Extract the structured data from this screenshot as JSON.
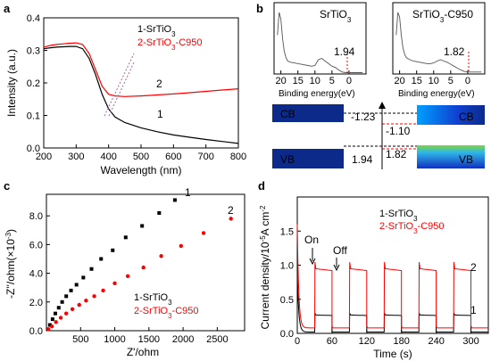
{
  "colors": {
    "black": "#000000",
    "red": "#ff0000",
    "gray": "#555555",
    "cb_dark": "#0b2a8a",
    "vb_green": "#7fd63a"
  },
  "panels": {
    "a": "a",
    "b": "b",
    "c": "c",
    "d": "d"
  },
  "chart_data": [
    {
      "panel": "a",
      "type": "line",
      "xlabel": "Wavelength (nm)",
      "ylabel": "Intensity (a.u.)",
      "xlim": [
        200,
        800
      ],
      "ylim": [
        0,
        0.4
      ],
      "xticks": [
        "200",
        "300",
        "400",
        "500",
        "600",
        "700",
        "800"
      ],
      "yticks": [
        "0.0",
        "0.1",
        "0.2",
        "0.3",
        "0.4"
      ],
      "legend": [
        "1-SrTiO3",
        "2-SrTiO3-C950"
      ],
      "curve_labels": [
        "1",
        "2"
      ],
      "series": [
        {
          "name": "1-SrTiO3",
          "color": "#000000",
          "x": [
            200,
            220,
            240,
            260,
            280,
            300,
            320,
            340,
            360,
            380,
            400,
            420,
            450,
            500,
            550,
            600,
            650,
            700,
            750,
            800
          ],
          "y": [
            0.305,
            0.308,
            0.31,
            0.311,
            0.312,
            0.312,
            0.305,
            0.275,
            0.225,
            0.165,
            0.12,
            0.095,
            0.078,
            0.062,
            0.05,
            0.04,
            0.033,
            0.026,
            0.02,
            0.014
          ]
        },
        {
          "name": "2-SrTiO3-C950",
          "color": "#ff0000",
          "x": [
            200,
            220,
            240,
            260,
            280,
            300,
            320,
            340,
            360,
            380,
            400,
            420,
            450,
            500,
            550,
            600,
            650,
            700,
            750,
            800
          ],
          "y": [
            0.31,
            0.315,
            0.318,
            0.32,
            0.322,
            0.323,
            0.318,
            0.29,
            0.24,
            0.19,
            0.165,
            0.16,
            0.158,
            0.16,
            0.163,
            0.166,
            0.17,
            0.174,
            0.178,
            0.182
          ]
        }
      ]
    },
    {
      "panel": "b",
      "type": "line",
      "subplots": [
        {
          "title": "SrTiO3",
          "annotation": "1.94",
          "xlabel": "Binding energy(eV)",
          "xticks": [
            "20",
            "15",
            "10",
            "5",
            "0"
          ],
          "x": [
            21,
            20.5,
            20,
            19.5,
            19,
            18.5,
            18,
            17,
            16,
            15,
            14,
            13,
            12,
            11,
            10,
            9,
            8,
            7,
            6,
            5,
            4,
            3,
            2,
            1,
            0,
            -1,
            -2,
            -3,
            -4
          ],
          "y": [
            0.6,
            0.95,
            0.85,
            0.55,
            0.35,
            0.25,
            0.2,
            0.18,
            0.17,
            0.16,
            0.15,
            0.14,
            0.13,
            0.12,
            0.13,
            0.22,
            0.24,
            0.2,
            0.16,
            0.12,
            0.1,
            0.06,
            0.03,
            0.02,
            0.02,
            0.02,
            0.02,
            0.02,
            0.02
          ]
        },
        {
          "title": "SrTiO3-C950",
          "annotation": "1.82",
          "xlabel": "Binding energy(eV)",
          "xticks": [
            "20",
            "15",
            "10",
            "5",
            "0"
          ],
          "x": [
            21,
            20.5,
            20,
            19.5,
            19,
            18.5,
            18,
            17,
            16,
            15,
            14,
            13,
            12,
            11,
            10,
            9,
            8,
            7,
            6,
            5,
            4,
            3,
            2,
            1,
            0,
            -1,
            -2,
            -3,
            -4
          ],
          "y": [
            0.6,
            0.95,
            0.88,
            0.6,
            0.4,
            0.3,
            0.25,
            0.22,
            0.2,
            0.19,
            0.18,
            0.17,
            0.16,
            0.16,
            0.17,
            0.2,
            0.22,
            0.2,
            0.18,
            0.15,
            0.12,
            0.09,
            0.06,
            0.04,
            0.03,
            0.03,
            0.03,
            0.03,
            0.03
          ]
        }
      ],
      "band_diagram": {
        "cb_label": "CB",
        "vb_label": "VB",
        "cb_left": "-1.23",
        "cb_right": "-1.10",
        "vb_left": "1.94",
        "vb_right": "1.82"
      }
    },
    {
      "panel": "c",
      "type": "scatter",
      "xlabel": "Z'/ohm",
      "ylabel": "-Z''/ohm(×10^-3)",
      "xlim": [
        0,
        2900
      ],
      "ylim": [
        0,
        9.5
      ],
      "xticks": [
        "500",
        "1000",
        "1500",
        "2000",
        "2500"
      ],
      "yticks": [
        "0.0",
        "2.0",
        "4.0",
        "6.0",
        "8.0"
      ],
      "legend": [
        "1-SrTiO3",
        "2-SrTiO3-C950"
      ],
      "curve_labels": [
        "1",
        "2"
      ],
      "series": [
        {
          "name": "1-SrTiO3",
          "color": "#000000",
          "x": [
            20,
            50,
            90,
            130,
            180,
            230,
            290,
            360,
            440,
            540,
            660,
            800,
            970,
            1160,
            1400,
            1650,
            1880
          ],
          "y": [
            0.1,
            0.4,
            0.8,
            1.2,
            1.6,
            2.0,
            2.4,
            2.8,
            3.2,
            3.7,
            4.3,
            5.0,
            5.6,
            6.5,
            7.3,
            8.2,
            9.1
          ]
        },
        {
          "name": "2-SrTiO3-C950",
          "color": "#ff0000",
          "x": [
            30,
            80,
            140,
            210,
            290,
            380,
            480,
            580,
            700,
            830,
            1000,
            1190,
            1420,
            1680,
            1970,
            2300,
            2700
          ],
          "y": [
            0.1,
            0.3,
            0.6,
            0.9,
            1.2,
            1.5,
            1.8,
            2.1,
            2.4,
            2.8,
            3.3,
            3.8,
            4.4,
            5.2,
            5.9,
            6.8,
            7.8
          ]
        }
      ]
    },
    {
      "panel": "d",
      "type": "line",
      "xlabel": "Time (s)",
      "ylabel": "Current density/10^-5A cm^-2",
      "xlim": [
        0,
        330
      ],
      "ylim": [
        0,
        2.0
      ],
      "xticks": [
        "0",
        "60",
        "120",
        "180",
        "240",
        "300"
      ],
      "yticks": [
        "0.0",
        "0.5",
        "1.0",
        "1.5"
      ],
      "legend": [
        "1-SrTiO3",
        "2-SrTiO3-C950"
      ],
      "annotations": [
        "On",
        "Off"
      ],
      "curve_labels": [
        "1",
        "2"
      ],
      "on_off_cycles": [
        [
          30,
          60
        ],
        [
          90,
          120
        ],
        [
          150,
          180
        ],
        [
          210,
          240
        ],
        [
          270,
          300
        ],
        [
          330,
          330
        ]
      ],
      "series": [
        {
          "name": "1-SrTiO3",
          "color": "#000000",
          "on_level": 0.27,
          "off_level": 0.02,
          "initial_spike": 0.9
        },
        {
          "name": "2-SrTiO3-C950",
          "color": "#ff0000",
          "on_level": 0.95,
          "off_level": 0.08,
          "initial_spike": 1.6
        }
      ]
    }
  ]
}
